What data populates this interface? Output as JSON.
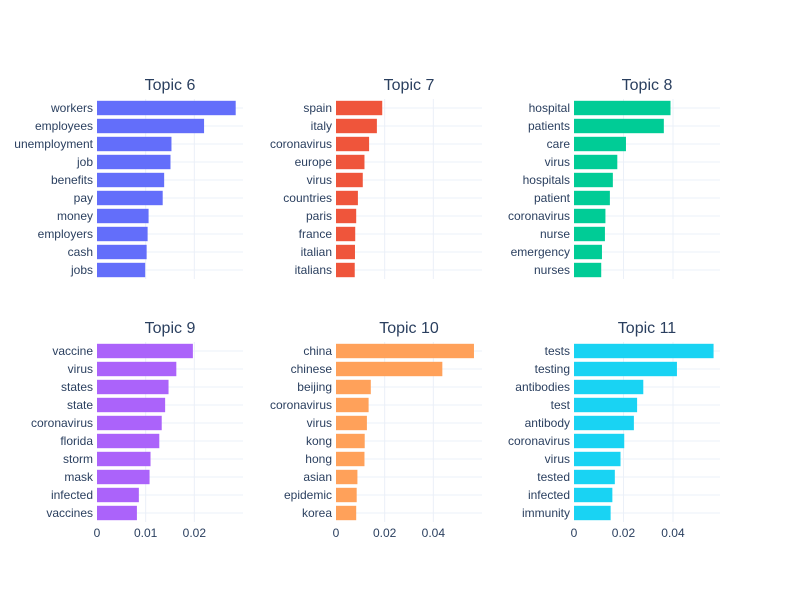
{
  "chart_data": [
    {
      "type": "bar",
      "orientation": "horizontal",
      "title": "Topic 6",
      "color": "#636efa",
      "categories": [
        "workers",
        "employees",
        "unemployment",
        "job",
        "benefits",
        "pay",
        "money",
        "employers",
        "cash",
        "jobs"
      ],
      "values": [
        0.0285,
        0.022,
        0.0153,
        0.0151,
        0.0138,
        0.0135,
        0.0106,
        0.0104,
        0.0102,
        0.0099
      ],
      "xlim": [
        0,
        0.03
      ],
      "xticks": [
        0,
        0.01,
        0.02
      ],
      "xtick_labels": [],
      "grid": true
    },
    {
      "type": "bar",
      "orientation": "horizontal",
      "title": "Topic 7",
      "color": "#ef553b",
      "categories": [
        "spain",
        "italy",
        "coronavirus",
        "europe",
        "virus",
        "countries",
        "paris",
        "france",
        "italian",
        "italians"
      ],
      "values": [
        0.019,
        0.0168,
        0.0136,
        0.0117,
        0.011,
        0.009,
        0.0083,
        0.0079,
        0.0078,
        0.0077
      ],
      "xlim": [
        0,
        0.06
      ],
      "xticks": [
        0,
        0.02,
        0.04
      ],
      "xtick_labels": [],
      "grid": true
    },
    {
      "type": "bar",
      "orientation": "horizontal",
      "title": "Topic 8",
      "color": "#00cc96",
      "categories": [
        "hospital",
        "patients",
        "care",
        "virus",
        "hospitals",
        "patient",
        "coronavirus",
        "nurse",
        "emergency",
        "nurses"
      ],
      "values": [
        0.039,
        0.0363,
        0.021,
        0.0175,
        0.0157,
        0.0145,
        0.0127,
        0.0125,
        0.0113,
        0.011
      ],
      "xlim": [
        0,
        0.059
      ],
      "xticks": [
        0,
        0.02,
        0.04
      ],
      "xtick_labels": [],
      "grid": true
    },
    {
      "type": "bar",
      "orientation": "horizontal",
      "title": "Topic 9",
      "color": "#ab63fa",
      "categories": [
        "vaccine",
        "virus",
        "states",
        "state",
        "coronavirus",
        "florida",
        "storm",
        "mask",
        "infected",
        "vaccines"
      ],
      "values": [
        0.0197,
        0.0163,
        0.0147,
        0.014,
        0.0133,
        0.0128,
        0.011,
        0.0108,
        0.0086,
        0.0082
      ],
      "xlim": [
        0,
        0.03
      ],
      "xticks": [
        0,
        0.01,
        0.02
      ],
      "xtick_labels": [
        "0",
        "0.01",
        "0.02"
      ],
      "grid": true
    },
    {
      "type": "bar",
      "orientation": "horizontal",
      "title": "Topic 10",
      "color": "#ffa15a",
      "categories": [
        "china",
        "chinese",
        "beijing",
        "coronavirus",
        "virus",
        "kong",
        "hong",
        "asian",
        "epidemic",
        "korea"
      ],
      "values": [
        0.0567,
        0.0437,
        0.0143,
        0.0134,
        0.0127,
        0.0118,
        0.0117,
        0.0088,
        0.0085,
        0.0083
      ],
      "xlim": [
        0,
        0.06
      ],
      "xticks": [
        0,
        0.02,
        0.04
      ],
      "xtick_labels": [
        "0",
        "0.02",
        "0.04"
      ],
      "grid": true
    },
    {
      "type": "bar",
      "orientation": "horizontal",
      "title": "Topic 11",
      "color": "#19d3f3",
      "categories": [
        "tests",
        "testing",
        "antibodies",
        "test",
        "antibody",
        "coronavirus",
        "virus",
        "tested",
        "infected",
        "immunity"
      ],
      "values": [
        0.0564,
        0.0416,
        0.028,
        0.0255,
        0.0242,
        0.0203,
        0.0188,
        0.0165,
        0.0155,
        0.0148
      ],
      "xlim": [
        0,
        0.059
      ],
      "xticks": [
        0,
        0.02,
        0.04
      ],
      "xtick_labels": [
        "0",
        "0.02",
        "0.04"
      ],
      "grid": true
    }
  ]
}
